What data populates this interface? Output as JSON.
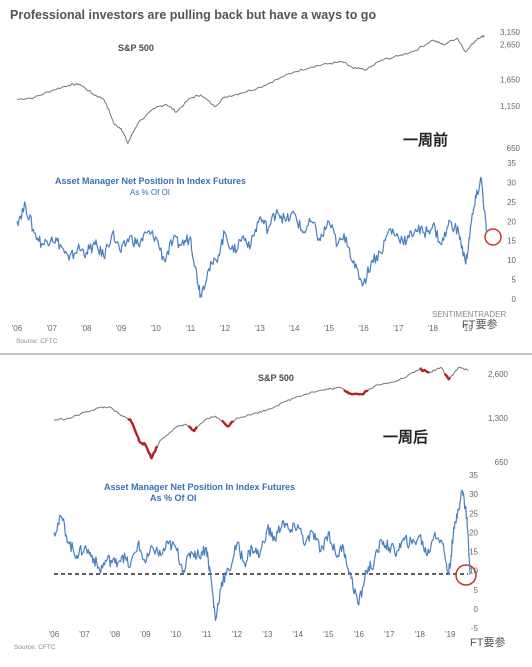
{
  "headline": "Professional investors are pulling back but have a ways to go",
  "annotations": {
    "one_week_before": "一周前",
    "one_week_after": "一周后"
  },
  "watermarks": {
    "sentimentrader": "SENTIMENTRADER",
    "ft_top": "FT要参",
    "ft_bottom": "FT要参"
  },
  "colors": {
    "spx": "#777777",
    "aum": "#4a7fbf",
    "highlight": "#b22222",
    "circle": "#c0392b",
    "dashed": "#000000"
  },
  "chart_data": [
    {
      "panel": "top",
      "type": "line",
      "title": "S&P 500",
      "scale": "log",
      "y_ticks": [
        "3,150",
        "2,650",
        "1,650",
        "1,150",
        "650"
      ],
      "ylim": [
        650,
        3150
      ],
      "x_ticks": [
        "'06",
        "'07",
        "'08",
        "'09",
        "'10",
        "'11",
        "'12",
        "'13",
        "'14",
        "'15",
        "'16",
        "'17",
        "'18",
        "'19"
      ],
      "x": [
        2006.0,
        2006.5,
        2007.0,
        2007.5,
        2007.8,
        2008.2,
        2008.5,
        2008.8,
        2009.0,
        2009.2,
        2009.5,
        2010.0,
        2010.3,
        2010.6,
        2011.0,
        2011.3,
        2011.7,
        2012.0,
        2012.5,
        2013.0,
        2013.5,
        2014.0,
        2014.5,
        2015.0,
        2015.4,
        2015.7,
        2016.1,
        2016.5,
        2017.0,
        2017.5,
        2018.0,
        2018.3,
        2018.7,
        2018.95,
        2019.3,
        2019.5
      ],
      "values": [
        1260,
        1290,
        1420,
        1530,
        1550,
        1350,
        1270,
        900,
        850,
        690,
        920,
        1120,
        1180,
        1060,
        1280,
        1340,
        1140,
        1300,
        1380,
        1480,
        1650,
        1830,
        1960,
        2050,
        2100,
        1920,
        1890,
        2140,
        2270,
        2450,
        2820,
        2650,
        2900,
        2400,
        2900,
        3000
      ]
    },
    {
      "panel": "top",
      "type": "line",
      "title": "Asset Manager Net Position In Index Futures",
      "subtitle": "As % Of OI",
      "y_ticks": [
        "35",
        "30",
        "25",
        "20",
        "15",
        "10",
        "5",
        "0"
      ],
      "ylim": [
        0,
        35
      ],
      "x_ticks": [
        "'06",
        "'07",
        "'08",
        "'09",
        "'10",
        "'11",
        "'12",
        "'13",
        "'14",
        "'15",
        "'16",
        "'17",
        "'18",
        "'19"
      ],
      "source": "Source: CFTC",
      "x": [
        2006.0,
        2006.25,
        2006.5,
        2006.75,
        2007.0,
        2007.25,
        2007.5,
        2007.75,
        2008.0,
        2008.25,
        2008.5,
        2008.75,
        2009.0,
        2009.25,
        2009.5,
        2009.75,
        2010.0,
        2010.25,
        2010.5,
        2010.75,
        2011.0,
        2011.15,
        2011.3,
        2011.5,
        2011.75,
        2012.0,
        2012.25,
        2012.5,
        2012.75,
        2013.0,
        2013.25,
        2013.5,
        2013.75,
        2014.0,
        2014.25,
        2014.5,
        2014.75,
        2015.0,
        2015.25,
        2015.5,
        2015.75,
        2016.0,
        2016.25,
        2016.5,
        2016.75,
        2017.0,
        2017.25,
        2017.5,
        2017.75,
        2018.0,
        2018.25,
        2018.5,
        2018.75,
        2018.95,
        2019.1,
        2019.25,
        2019.4,
        2019.55
      ],
      "values": [
        20,
        24,
        17,
        14,
        16,
        14,
        10,
        13,
        12,
        14,
        11,
        17,
        12,
        16,
        14,
        17,
        16,
        10,
        15,
        14,
        16,
        8,
        1,
        7,
        10,
        17,
        12,
        16,
        14,
        21,
        18,
        23,
        20,
        22,
        17,
        20,
        15,
        20,
        14,
        16,
        8,
        4,
        10,
        12,
        18,
        16,
        15,
        18,
        17,
        19,
        14,
        20,
        17,
        9,
        19,
        26,
        31,
        17
      ]
    },
    {
      "panel": "bottom",
      "type": "line",
      "title": "S&P 500",
      "scale": "log",
      "y_ticks": [
        "2,600",
        "1,300",
        "650"
      ],
      "ylim": [
        650,
        3000
      ],
      "x_ticks": [],
      "highlighted_segments": [
        [
          2008.4,
          2009.4
        ],
        [
          2010.4,
          2010.7
        ],
        [
          2011.5,
          2011.9
        ],
        [
          2015.5,
          2016.3
        ],
        [
          2018.0,
          2018.3
        ],
        [
          2018.8,
          2019.0
        ]
      ],
      "x": [
        2006.0,
        2006.5,
        2007.0,
        2007.5,
        2007.8,
        2008.2,
        2008.5,
        2008.8,
        2009.0,
        2009.2,
        2009.5,
        2010.0,
        2010.3,
        2010.6,
        2011.0,
        2011.3,
        2011.7,
        2012.0,
        2012.5,
        2013.0,
        2013.5,
        2014.0,
        2014.5,
        2015.0,
        2015.4,
        2015.7,
        2016.1,
        2016.5,
        2017.0,
        2017.5,
        2018.0,
        2018.3,
        2018.7,
        2018.95,
        2019.3,
        2019.6
      ],
      "values": [
        1260,
        1290,
        1420,
        1530,
        1550,
        1350,
        1270,
        900,
        850,
        690,
        920,
        1120,
        1180,
        1060,
        1280,
        1340,
        1140,
        1300,
        1380,
        1480,
        1650,
        1830,
        1960,
        2050,
        2100,
        1920,
        1890,
        2140,
        2270,
        2450,
        2820,
        2650,
        2900,
        2400,
        2900,
        2750
      ]
    },
    {
      "panel": "bottom",
      "type": "line",
      "title": "Asset Manager Net Position In Index Futures",
      "subtitle": "As % Of OI",
      "y_ticks": [
        "35",
        "30",
        "25",
        "20",
        "15",
        "10",
        "5",
        "0",
        "-5"
      ],
      "ylim": [
        -5,
        35
      ],
      "x_ticks": [
        "'06",
        "'07",
        "'08",
        "'09",
        "'10",
        "'11",
        "'12",
        "'13",
        "'14",
        "'15",
        "'16",
        "'17",
        "'18",
        "'19"
      ],
      "threshold": 9,
      "source": "Source: CFTC",
      "x": [
        2006.0,
        2006.25,
        2006.5,
        2006.75,
        2007.0,
        2007.25,
        2007.5,
        2007.75,
        2008.0,
        2008.25,
        2008.5,
        2008.75,
        2009.0,
        2009.25,
        2009.5,
        2009.75,
        2010.0,
        2010.25,
        2010.5,
        2010.75,
        2011.0,
        2011.15,
        2011.3,
        2011.5,
        2011.75,
        2012.0,
        2012.25,
        2012.5,
        2012.75,
        2013.0,
        2013.25,
        2013.5,
        2013.75,
        2014.0,
        2014.25,
        2014.5,
        2014.75,
        2015.0,
        2015.25,
        2015.5,
        2015.75,
        2016.0,
        2016.25,
        2016.5,
        2016.75,
        2017.0,
        2017.25,
        2017.5,
        2017.75,
        2018.0,
        2018.25,
        2018.5,
        2018.75,
        2018.95,
        2019.1,
        2019.25,
        2019.4,
        2019.55,
        2019.65
      ],
      "values": [
        20,
        24,
        17,
        14,
        16,
        14,
        10,
        13,
        12,
        14,
        11,
        17,
        12,
        16,
        14,
        17,
        16,
        10,
        15,
        14,
        16,
        8,
        -3,
        7,
        10,
        17,
        12,
        16,
        14,
        21,
        18,
        23,
        20,
        22,
        17,
        20,
        15,
        20,
        14,
        16,
        8,
        1,
        10,
        12,
        18,
        16,
        15,
        18,
        17,
        19,
        14,
        20,
        17,
        9,
        19,
        26,
        31,
        24,
        9
      ]
    }
  ]
}
